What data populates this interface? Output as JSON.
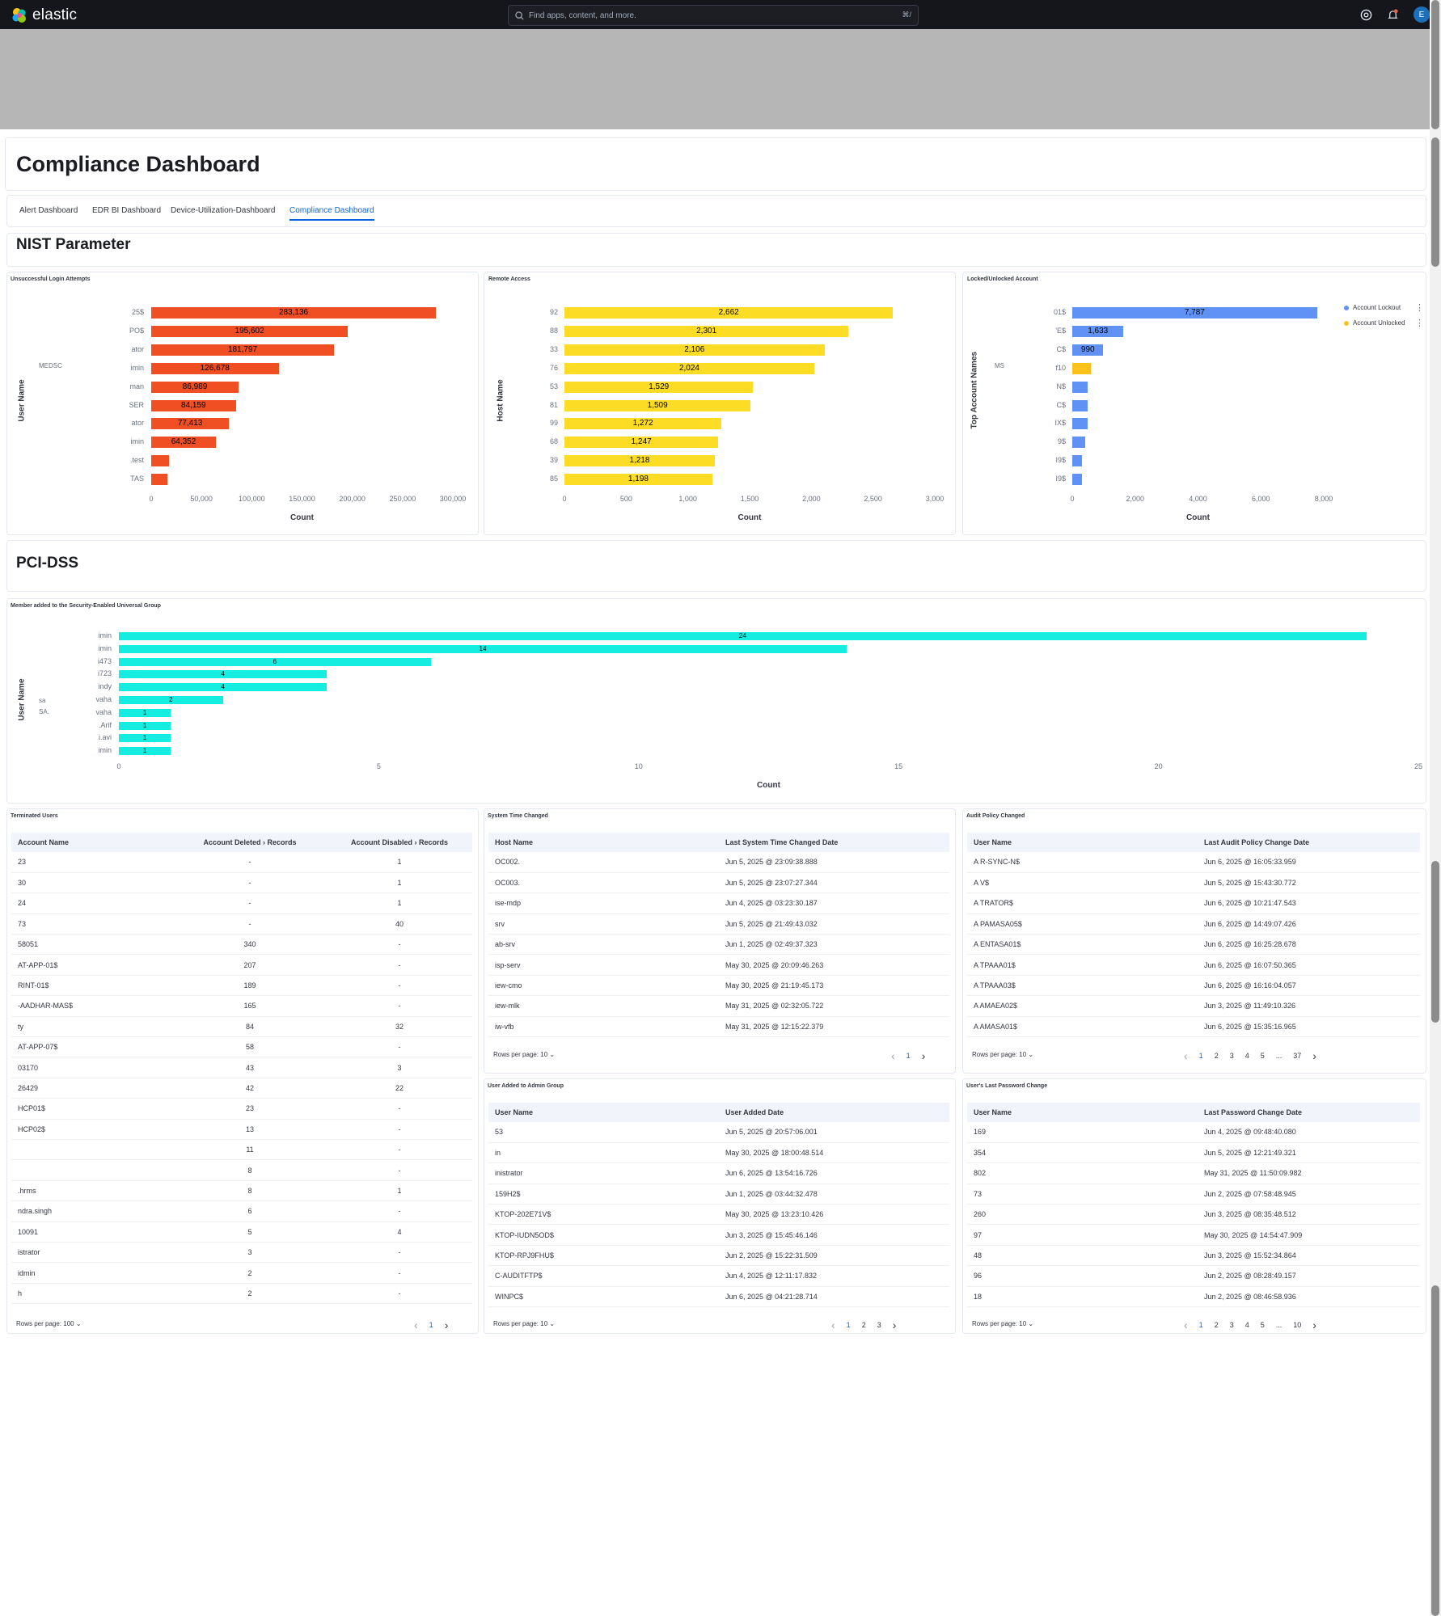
{
  "topbar": {
    "logo_text": "elastic",
    "search_placeholder": "Find apps, content, and more.",
    "search_shortcut": "⌘/",
    "avatar_letter": "E"
  },
  "page": {
    "title": "Compliance Dashboard",
    "tabs": [
      "Alert Dashboard",
      "EDR BI Dashboard",
      "Device-Utilization-Dashboard",
      "Compliance Dashboard"
    ],
    "section_nist": "NIST Parameter",
    "section_pci": "PCI-DSS"
  },
  "charts": [
    {
      "panel_title": "Unsuccessful Login Attempts",
      "chart_data": {
        "type": "bar",
        "orientation": "horizontal",
        "categories": [
          "25$",
          "PO$",
          "ator",
          "imin",
          "man",
          "SER",
          "ator",
          "imin",
          ".test",
          "TAS"
        ],
        "values": [
          283136,
          195602,
          181797,
          126678,
          86989,
          84159,
          77413,
          64352,
          18000,
          16000
        ],
        "value_labels": [
          "283,136",
          "195,602",
          "181,797",
          "126,678",
          "86,989",
          "84,159",
          "77,413",
          "64,352",
          "",
          ""
        ],
        "xlim": [
          0,
          300000
        ],
        "xticks": [
          "0",
          "50,000",
          "100,000",
          "150,000",
          "200,000",
          "250,000",
          "300,000"
        ],
        "xlabel": "Count",
        "ylabel": "User Name",
        "side_label": "MEDSC",
        "color": "#f04e23"
      }
    },
    {
      "panel_title": "Remote Access",
      "chart_data": {
        "type": "bar",
        "orientation": "horizontal",
        "categories": [
          "92",
          "88",
          "33",
          "76",
          "53",
          "81",
          "99",
          "68",
          "39",
          "85"
        ],
        "values": [
          2662,
          2301,
          2106,
          2024,
          1529,
          1509,
          1272,
          1247,
          1218,
          1198
        ],
        "value_labels": [
          "2,662",
          "2,301",
          "2,106",
          "2,024",
          "1,529",
          "1,509",
          "1,272",
          "1,247",
          "1,218",
          "1,198"
        ],
        "xlim": [
          0,
          3000
        ],
        "xticks": [
          "0",
          "500",
          "1,000",
          "1,500",
          "2,000",
          "2,500",
          "3,000"
        ],
        "xlabel": "Count",
        "ylabel": "Host Name",
        "color": "#fcdc24"
      }
    },
    {
      "panel_title": "Locked/Unlocked Account",
      "chart_data": {
        "type": "bar",
        "orientation": "horizontal",
        "categories": [
          "01$",
          "'E$",
          "C$",
          "f10",
          "N$",
          "C$",
          "IX$",
          "9$",
          "I9$",
          "I9$"
        ],
        "series": [
          {
            "name": "Account Lockout",
            "values": [
              7787,
              1633,
              990,
              0,
              500,
              500,
              500,
              400,
              300,
              300
            ]
          },
          {
            "name": "Account Unlocked",
            "values": [
              0,
              0,
              0,
              600,
              0,
              0,
              0,
              0,
              0,
              0
            ]
          }
        ],
        "value_labels": [
          "7,787",
          "1,633",
          "990",
          "",
          "",
          "",
          "",
          "",
          "",
          ""
        ],
        "xlim": [
          0,
          8000
        ],
        "xticks": [
          "0",
          "2,000",
          "4,000",
          "6,000",
          "8,000"
        ],
        "xlabel": "Count",
        "ylabel": "Top Account Names",
        "side_label": "MS",
        "colors": [
          "#6092f5",
          "#fcc21b"
        ]
      }
    },
    {
      "panel_title": "Member added to the Security-Enabled Universal Group",
      "chart_data": {
        "type": "bar",
        "orientation": "horizontal",
        "categories": [
          "imin",
          "imin",
          "i473",
          "i723",
          "indy",
          "vaha",
          "vaha",
          ".Arif",
          "i.avi",
          "imin"
        ],
        "values": [
          24,
          14,
          6,
          4,
          4,
          2,
          1,
          1,
          1,
          1
        ],
        "value_labels": [
          "24",
          "14",
          "6",
          "4",
          "4",
          "2",
          "1",
          "1",
          "1",
          "1"
        ],
        "xlim": [
          0,
          25
        ],
        "xticks": [
          "0",
          "5",
          "10",
          "15",
          "20",
          "25"
        ],
        "xlabel": "Count",
        "ylabel": "User Name",
        "side_labels": [
          "sa",
          "SA."
        ],
        "color": "#15ede1"
      }
    }
  ],
  "tables": {
    "terminated": {
      "title": "Terminated Users",
      "headers": [
        "Account Name",
        "Account Deleted › Records",
        "Account Disabled › Records"
      ],
      "rows": [
        [
          "23",
          "-",
          "1"
        ],
        [
          "30",
          "-",
          "1"
        ],
        [
          "24",
          "-",
          "1"
        ],
        [
          "73",
          "-",
          "40"
        ],
        [
          "58051",
          "340",
          "-"
        ],
        [
          "AT-APP-01$",
          "207",
          "-"
        ],
        [
          "RINT-01$",
          "189",
          "-"
        ],
        [
          "-AADHAR-MAS$",
          "165",
          "-"
        ],
        [
          "ty",
          "84",
          "32"
        ],
        [
          "AT-APP-07$",
          "58",
          "-"
        ],
        [
          "03170",
          "43",
          "3"
        ],
        [
          "26429",
          "42",
          "22"
        ],
        [
          "HCP01$",
          "23",
          "-"
        ],
        [
          "HCP02$",
          "13",
          "-"
        ],
        [
          "",
          "11",
          "-"
        ],
        [
          "",
          "8",
          "-"
        ],
        [
          ".hrms",
          "8",
          "1"
        ],
        [
          "ndra.singh",
          "6",
          "-"
        ],
        [
          "10091",
          "5",
          "4"
        ],
        [
          "istrator",
          "3",
          "-"
        ],
        [
          "idmin",
          "2",
          "-"
        ],
        [
          "h",
          "2",
          "-"
        ]
      ],
      "rows_per_page": "Rows per page: 100",
      "pages": [
        "1"
      ],
      "active": "1"
    },
    "system_time": {
      "title": "System Time Changed",
      "headers": [
        "Host Name",
        "Last System Time Changed Date"
      ],
      "rows": [
        [
          "OC002.",
          "Jun 5, 2025 @ 23:09:38.888"
        ],
        [
          "OC003.",
          "Jun 5, 2025 @ 23:07:27.344"
        ],
        [
          "ise-mdp",
          "Jun 4, 2025 @ 03:23:30.187"
        ],
        [
          "srv",
          "Jun 5, 2025 @ 21:49:43.032"
        ],
        [
          "ab-srv",
          "Jun 1, 2025 @ 02:49:37.323"
        ],
        [
          "isp-serv",
          "May 30, 2025 @ 20:09:46.263"
        ],
        [
          "iew-cmo",
          "May 30, 2025 @ 21:19:45.173"
        ],
        [
          "iew-mlk",
          "May 31, 2025 @ 02:32:05.722"
        ],
        [
          "iw-vfb",
          "May 31, 2025 @ 12:15:22.379"
        ]
      ],
      "rows_per_page": "Rows per page: 10",
      "pages": [
        "1"
      ],
      "active": "1"
    },
    "audit": {
      "title": "Audit Policy Changed",
      "headers": [
        "User Name",
        "Last Audit Policy Change Date"
      ],
      "rows": [
        [
          "A   R-SYNC-N$",
          "Jun 6, 2025 @ 16:05:33.959"
        ],
        [
          "A   V$",
          "Jun 5, 2025 @ 15:43:30.772"
        ],
        [
          "A   TRATOR$",
          "Jun 6, 2025 @ 10:21:47.543"
        ],
        [
          "A   PAMASA05$",
          "Jun 6, 2025 @ 14:49:07.426"
        ],
        [
          "A   ENTASA01$",
          "Jun 6, 2025 @ 16:25:28.678"
        ],
        [
          "A   TPAAA01$",
          "Jun 6, 2025 @ 16:07:50.365"
        ],
        [
          "A   TPAAA03$",
          "Jun 6, 2025 @ 16:16:04.057"
        ],
        [
          "A   AMAEA02$",
          "Jun 3, 2025 @ 11:49:10.326"
        ],
        [
          "A   AMASA01$",
          "Jun 6, 2025 @ 15:35:16.965"
        ]
      ],
      "rows_per_page": "Rows per page: 10",
      "pages": [
        "1",
        "2",
        "3",
        "4",
        "5",
        "...",
        "37"
      ],
      "active": "1"
    },
    "admin_group": {
      "title": "User Added to Admin Group",
      "headers": [
        "User Name",
        "User Added Date"
      ],
      "rows": [
        [
          "53",
          "Jun 5, 2025 @ 20:57:06.001"
        ],
        [
          "in",
          "May 30, 2025 @ 18:00:48.514"
        ],
        [
          "inistrator",
          "Jun 6, 2025 @ 13:54:16.726"
        ],
        [
          "159H2$",
          "Jun 1, 2025 @ 03:44:32.478"
        ],
        [
          "KTOP-202E71V$",
          "May 30, 2025 @ 13:23:10.426"
        ],
        [
          "KTOP-IUDN5OD$",
          "Jun 3, 2025 @ 15:45:46.146"
        ],
        [
          "KTOP-RPJ9FHU$",
          "Jun 2, 2025 @ 15:22:31.509"
        ],
        [
          "C-AUDITFTP$",
          "Jun 4, 2025 @ 12:11:17.832"
        ],
        [
          "WINPC$",
          "Jun 6, 2025 @ 04:21:28.714"
        ]
      ],
      "rows_per_page": "Rows per page: 10",
      "pages": [
        "1",
        "2",
        "3"
      ],
      "active": "1"
    },
    "password": {
      "title": "User's Last Password Change",
      "headers": [
        "User Name",
        "Last Password Change Date"
      ],
      "rows": [
        [
          "169",
          "Jun 4, 2025 @ 09:48:40.080"
        ],
        [
          "354",
          "Jun 5, 2025 @ 12:21:49.321"
        ],
        [
          "802",
          "May 31, 2025 @ 11:50:09.982"
        ],
        [
          "73",
          "Jun 2, 2025 @ 07:58:48.945"
        ],
        [
          "260",
          "Jun 3, 2025 @ 08:35:48.512"
        ],
        [
          "97",
          "May 30, 2025 @ 14:54:47.909"
        ],
        [
          "48",
          "Jun 3, 2025 @ 15:52:34.864"
        ],
        [
          "96",
          "Jun 2, 2025 @ 08:28:49.157"
        ],
        [
          "18",
          "Jun 2, 2025 @ 08:46:58.936"
        ]
      ],
      "rows_per_page": "Rows per page: 10",
      "pages": [
        "1",
        "2",
        "3",
        "4",
        "5",
        "...",
        "10"
      ],
      "active": "1"
    }
  }
}
